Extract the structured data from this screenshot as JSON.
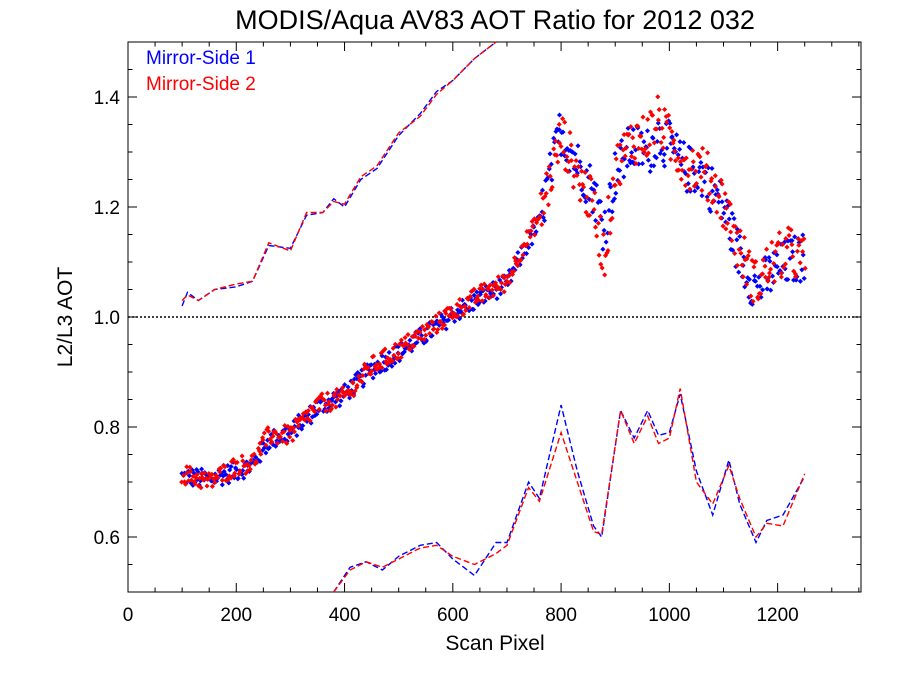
{
  "chart_data": {
    "type": "scatter",
    "title": "MODIS/Aqua AV83 AOT Ratio for 2012 032",
    "xlabel": "Scan Pixel",
    "ylabel": "L2/L3 AOT",
    "xlim": [
      0,
      1354
    ],
    "ylim": [
      0.5,
      1.5
    ],
    "x_ticks": [
      0,
      200,
      400,
      600,
      800,
      1000,
      1200
    ],
    "x_tick_labels": [
      "0",
      "200",
      "400",
      "600",
      "800",
      "1000",
      "1200"
    ],
    "y_ticks": [
      0.6,
      0.8,
      1.0,
      1.2,
      1.4
    ],
    "y_tick_labels": [
      "0.6",
      "0.8",
      "1.0",
      "1.2",
      "1.4"
    ],
    "reference_line": 1.0,
    "legend_position": "top-left",
    "colors": {
      "side1": "#0000ff",
      "side2": "#ff0000",
      "reference": "#000000"
    },
    "series": [
      {
        "name": "Mirror-Side 1",
        "color": "#0000ff",
        "mean_points": [
          [
            100,
            0.71
          ],
          [
            150,
            0.705
          ],
          [
            200,
            0.72
          ],
          [
            230,
            0.73
          ],
          [
            260,
            0.775
          ],
          [
            300,
            0.79
          ],
          [
            350,
            0.835
          ],
          [
            400,
            0.86
          ],
          [
            450,
            0.905
          ],
          [
            500,
            0.935
          ],
          [
            560,
            0.975
          ],
          [
            600,
            1.005
          ],
          [
            650,
            1.035
          ],
          [
            700,
            1.06
          ],
          [
            730,
            1.12
          ],
          [
            760,
            1.17
          ],
          [
            790,
            1.3
          ],
          [
            800,
            1.34
          ],
          [
            830,
            1.28
          ],
          [
            860,
            1.23
          ],
          [
            880,
            1.16
          ],
          [
            900,
            1.26
          ],
          [
            930,
            1.31
          ],
          [
            960,
            1.3
          ],
          [
            980,
            1.33
          ],
          [
            1000,
            1.31
          ],
          [
            1030,
            1.27
          ],
          [
            1060,
            1.26
          ],
          [
            1100,
            1.2
          ],
          [
            1130,
            1.11
          ],
          [
            1160,
            1.05
          ],
          [
            1190,
            1.08
          ],
          [
            1220,
            1.1
          ],
          [
            1250,
            1.11
          ]
        ],
        "upper_envelope": [
          [
            100,
            1.02
          ],
          [
            110,
            1.045
          ],
          [
            130,
            1.03
          ],
          [
            160,
            1.05
          ],
          [
            200,
            1.055
          ],
          [
            230,
            1.065
          ],
          [
            260,
            1.13
          ],
          [
            300,
            1.125
          ],
          [
            330,
            1.185
          ],
          [
            360,
            1.19
          ],
          [
            380,
            1.215
          ],
          [
            400,
            1.2
          ],
          [
            430,
            1.25
          ],
          [
            460,
            1.27
          ],
          [
            500,
            1.33
          ],
          [
            540,
            1.37
          ],
          [
            570,
            1.41
          ],
          [
            600,
            1.43
          ],
          [
            640,
            1.47
          ],
          [
            680,
            1.5
          ]
        ],
        "lower_envelope": [
          [
            380,
            0.5
          ],
          [
            410,
            0.545
          ],
          [
            440,
            0.555
          ],
          [
            470,
            0.54
          ],
          [
            500,
            0.565
          ],
          [
            540,
            0.585
          ],
          [
            570,
            0.59
          ],
          [
            600,
            0.56
          ],
          [
            640,
            0.53
          ],
          [
            680,
            0.59
          ],
          [
            700,
            0.59
          ],
          [
            740,
            0.7
          ],
          [
            760,
            0.67
          ],
          [
            800,
            0.84
          ],
          [
            830,
            0.72
          ],
          [
            860,
            0.62
          ],
          [
            875,
            0.6
          ],
          [
            910,
            0.83
          ],
          [
            935,
            0.78
          ],
          [
            960,
            0.83
          ],
          [
            980,
            0.785
          ],
          [
            1000,
            0.79
          ],
          [
            1020,
            0.86
          ],
          [
            1050,
            0.72
          ],
          [
            1080,
            0.64
          ],
          [
            1110,
            0.74
          ],
          [
            1130,
            0.66
          ],
          [
            1160,
            0.59
          ],
          [
            1180,
            0.63
          ],
          [
            1210,
            0.64
          ],
          [
            1250,
            0.71
          ]
        ]
      },
      {
        "name": "Mirror-Side 2",
        "color": "#ff0000",
        "mean_points": [
          [
            100,
            0.715
          ],
          [
            150,
            0.7
          ],
          [
            200,
            0.73
          ],
          [
            230,
            0.735
          ],
          [
            260,
            0.785
          ],
          [
            300,
            0.785
          ],
          [
            350,
            0.84
          ],
          [
            400,
            0.855
          ],
          [
            450,
            0.91
          ],
          [
            500,
            0.94
          ],
          [
            560,
            0.98
          ],
          [
            600,
            1.01
          ],
          [
            650,
            1.04
          ],
          [
            700,
            1.065
          ],
          [
            730,
            1.13
          ],
          [
            760,
            1.18
          ],
          [
            790,
            1.29
          ],
          [
            800,
            1.33
          ],
          [
            830,
            1.26
          ],
          [
            860,
            1.2
          ],
          [
            880,
            1.11
          ],
          [
            900,
            1.27
          ],
          [
            930,
            1.32
          ],
          [
            960,
            1.33
          ],
          [
            980,
            1.36
          ],
          [
            1000,
            1.32
          ],
          [
            1030,
            1.28
          ],
          [
            1060,
            1.27
          ],
          [
            1100,
            1.21
          ],
          [
            1130,
            1.12
          ],
          [
            1160,
            1.06
          ],
          [
            1190,
            1.1
          ],
          [
            1220,
            1.12
          ],
          [
            1250,
            1.1
          ]
        ],
        "upper_envelope": [
          [
            100,
            1.03
          ],
          [
            110,
            1.04
          ],
          [
            130,
            1.03
          ],
          [
            160,
            1.05
          ],
          [
            200,
            1.06
          ],
          [
            230,
            1.065
          ],
          [
            260,
            1.135
          ],
          [
            300,
            1.12
          ],
          [
            330,
            1.19
          ],
          [
            360,
            1.19
          ],
          [
            380,
            1.21
          ],
          [
            400,
            1.205
          ],
          [
            430,
            1.255
          ],
          [
            460,
            1.275
          ],
          [
            500,
            1.335
          ],
          [
            540,
            1.365
          ],
          [
            570,
            1.405
          ],
          [
            600,
            1.43
          ],
          [
            640,
            1.47
          ],
          [
            680,
            1.5
          ]
        ],
        "lower_envelope": [
          [
            380,
            0.5
          ],
          [
            410,
            0.54
          ],
          [
            440,
            0.555
          ],
          [
            470,
            0.545
          ],
          [
            500,
            0.56
          ],
          [
            540,
            0.58
          ],
          [
            570,
            0.585
          ],
          [
            600,
            0.565
          ],
          [
            640,
            0.55
          ],
          [
            680,
            0.57
          ],
          [
            700,
            0.585
          ],
          [
            740,
            0.69
          ],
          [
            760,
            0.665
          ],
          [
            800,
            0.79
          ],
          [
            830,
            0.7
          ],
          [
            860,
            0.61
          ],
          [
            875,
            0.605
          ],
          [
            910,
            0.83
          ],
          [
            935,
            0.77
          ],
          [
            960,
            0.82
          ],
          [
            980,
            0.77
          ],
          [
            1000,
            0.78
          ],
          [
            1020,
            0.87
          ],
          [
            1050,
            0.7
          ],
          [
            1080,
            0.66
          ],
          [
            1110,
            0.73
          ],
          [
            1130,
            0.67
          ],
          [
            1160,
            0.6
          ],
          [
            1180,
            0.625
          ],
          [
            1210,
            0.62
          ],
          [
            1250,
            0.715
          ]
        ]
      }
    ]
  }
}
